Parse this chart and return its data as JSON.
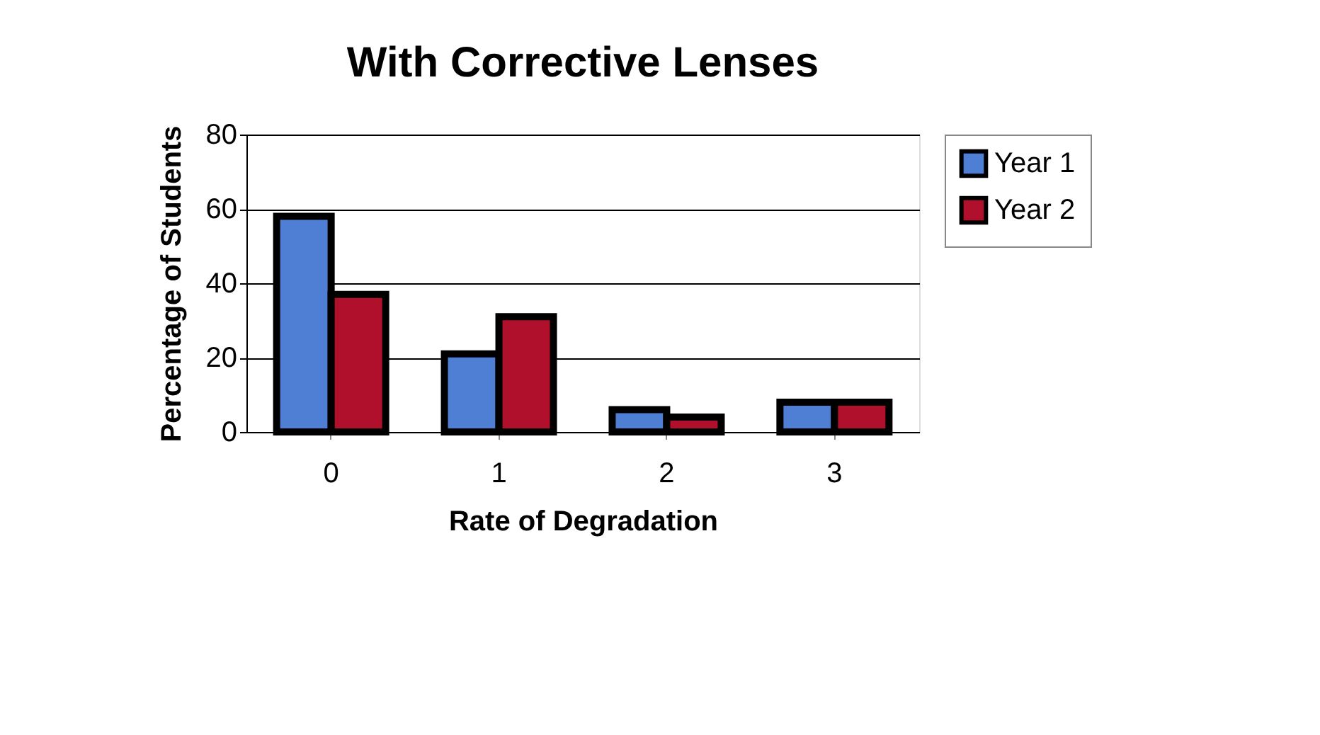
{
  "chart_data": {
    "type": "bar",
    "title": "With Corrective Lenses",
    "xlabel": "Rate of Degradation",
    "ylabel": "Percentage of Students",
    "categories": [
      "0",
      "1",
      "2",
      "3"
    ],
    "series": [
      {
        "name": "Year 1",
        "color": "#4f7fd4",
        "values": [
          58,
          21,
          6,
          8
        ]
      },
      {
        "name": "Year 2",
        "color": "#b0102c",
        "values": [
          37,
          31,
          4,
          8
        ]
      }
    ],
    "ylim": [
      0,
      80
    ],
    "yticks": [
      0,
      20,
      40,
      60,
      80
    ],
    "grid": "y",
    "legend": "right"
  }
}
